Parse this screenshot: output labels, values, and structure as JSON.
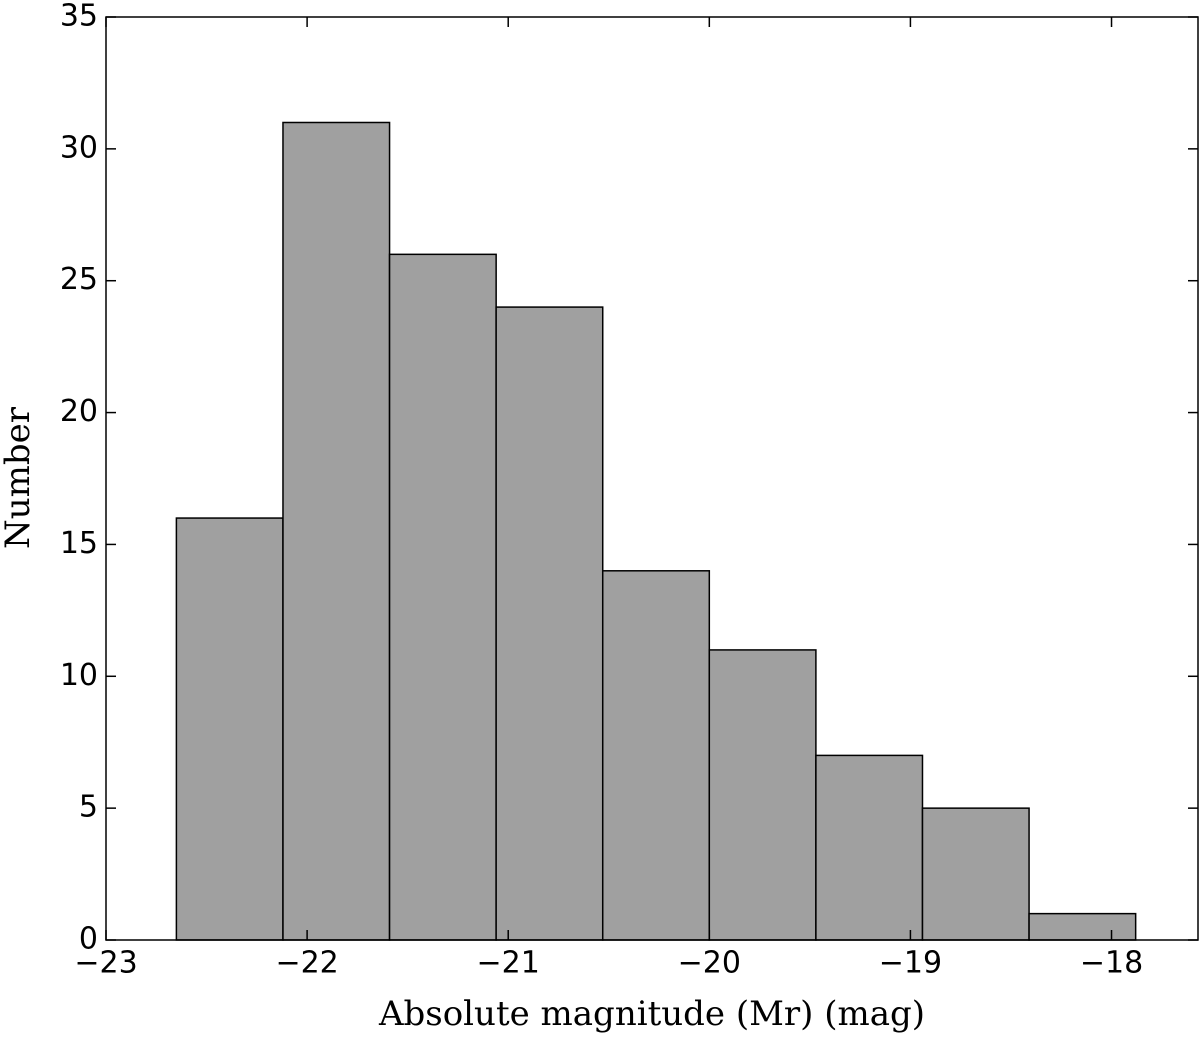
{
  "chart_data": {
    "type": "histogram",
    "xlabel": "Absolute magnitude (Mr) (mag)",
    "ylabel": "Number",
    "bins": [
      -22.65,
      -22.12,
      -21.59,
      -21.06,
      -20.53,
      -20.0,
      -19.47,
      -18.94,
      -18.41,
      -17.88
    ],
    "values": [
      16,
      31,
      26,
      24,
      14,
      11,
      7,
      5,
      1
    ],
    "color": "#a0a0a0",
    "xlim": [
      -23,
      -17.57
    ],
    "ylim": [
      0,
      35
    ],
    "xticks": [
      {
        "value": -23,
        "label": "−23"
      },
      {
        "value": -22,
        "label": "−22"
      },
      {
        "value": -21,
        "label": "−21"
      },
      {
        "value": -20,
        "label": "−20"
      },
      {
        "value": -19,
        "label": "−19"
      },
      {
        "value": -18,
        "label": "−18"
      }
    ],
    "yticks": [
      0,
      5,
      10,
      15,
      20,
      25,
      30,
      35
    ],
    "grid": false
  }
}
